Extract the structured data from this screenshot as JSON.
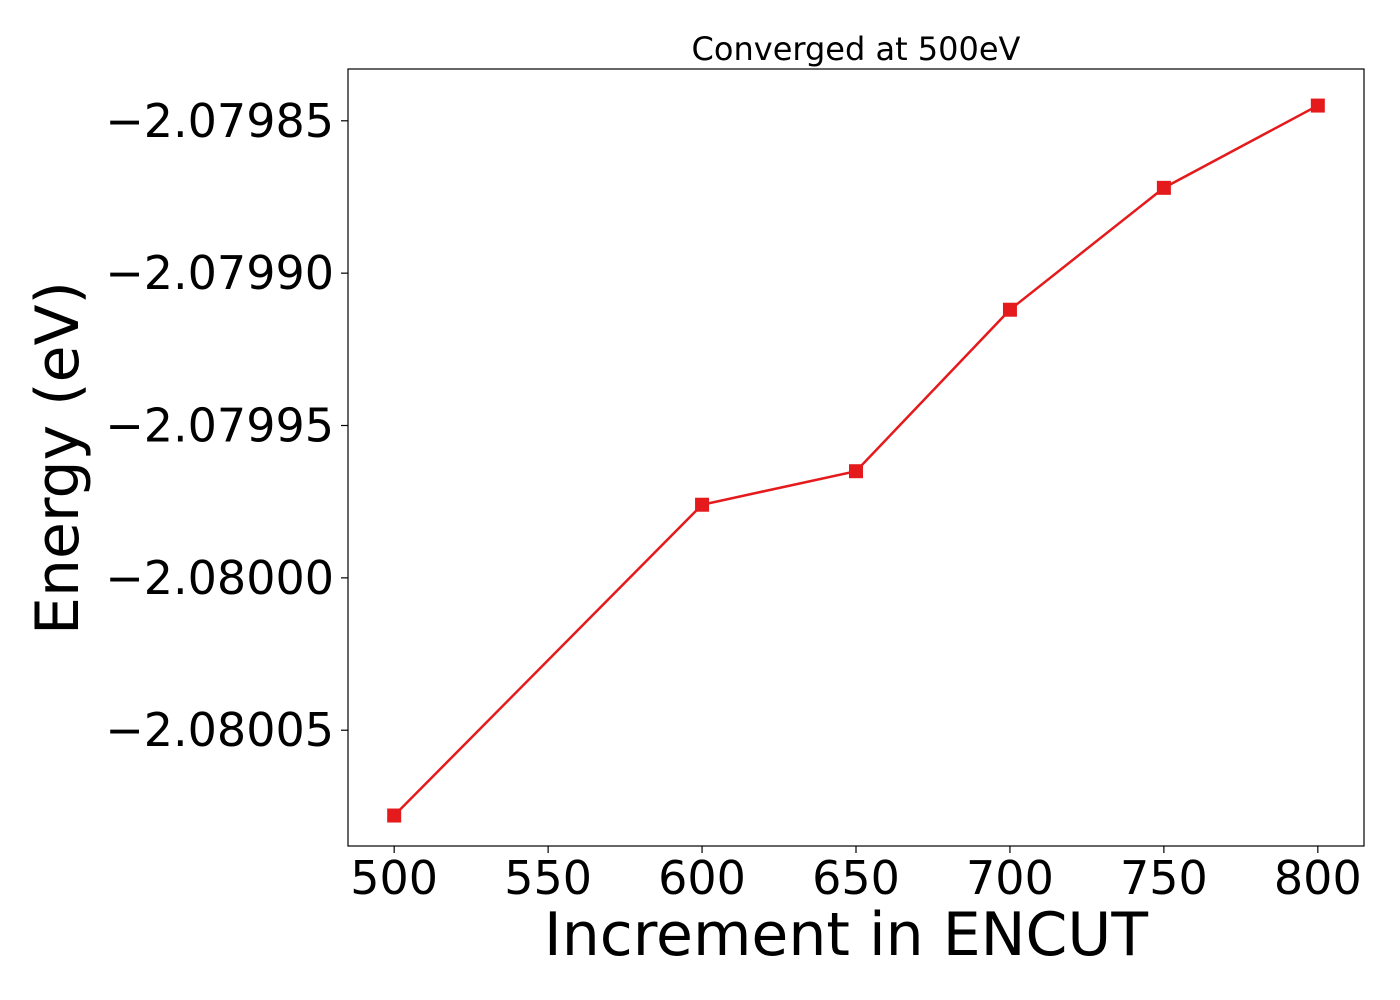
{
  "chart_data": {
    "type": "line",
    "title": "Converged at 500eV",
    "xlabel": "Increment in ENCUT",
    "ylabel": "Energy (eV)",
    "x_ticks": [
      "500",
      "550",
      "600",
      "650",
      "700",
      "750",
      "800"
    ],
    "x_tick_values": [
      500,
      550,
      600,
      650,
      700,
      750,
      800
    ],
    "y_ticks": [
      "−2.07985",
      "−2.07990",
      "−2.07995",
      "−2.08000",
      "−2.08005"
    ],
    "y_tick_values": [
      -2.07985,
      -2.0799,
      -2.07995,
      -2.08,
      -2.08005
    ],
    "xlim": [
      485,
      815
    ],
    "ylim": [
      -2.080088,
      -2.079833
    ],
    "grid": false,
    "series": [
      {
        "marker": "square",
        "color": "#e41a1c",
        "x": [
          500,
          600,
          650,
          700,
          750,
          800
        ],
        "y": [
          -2.080078,
          -2.079976,
          -2.079965,
          -2.079912,
          -2.079872,
          -2.079845
        ]
      }
    ]
  }
}
